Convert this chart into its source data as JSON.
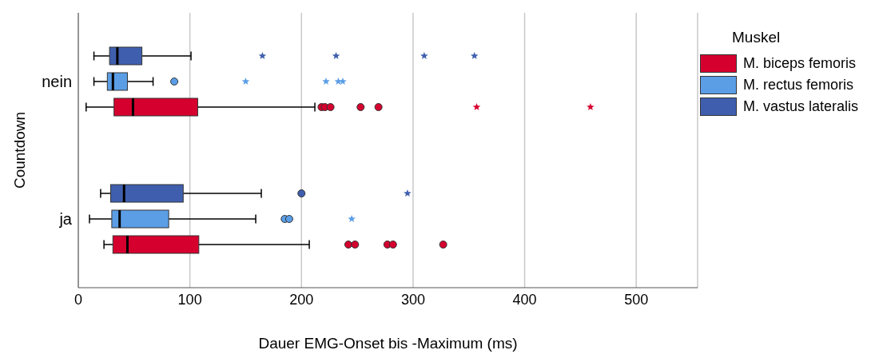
{
  "chart_data": {
    "type": "box",
    "orientation": "horizontal",
    "xlabel": "Dauer EMG-Onset bis -Maximum (ms)",
    "ylabel": "Countdown",
    "legend_title": "Muskel",
    "legend": "right",
    "grid": "x",
    "categories": [
      "nein",
      "ja"
    ],
    "xlim": [
      0,
      555
    ],
    "xticks": [
      0,
      100,
      200,
      300,
      400,
      500
    ],
    "series": [
      {
        "name": "M. biceps femoris",
        "color": "#d6002f",
        "boxes": [
          {
            "low": 7,
            "q1": 32,
            "median": 49,
            "q3": 107,
            "high": 212,
            "outliers": [
              218,
              221,
              226,
              253,
              269,
              357,
              459
            ]
          },
          {
            "low": 23,
            "q1": 31,
            "median": 44,
            "q3": 108,
            "high": 207,
            "outliers": [
              242,
              248,
              277,
              282,
              327
            ]
          }
        ]
      },
      {
        "name": "M. rectus femoris",
        "color": "#5b9ee6",
        "boxes": [
          {
            "low": 14,
            "q1": 26,
            "median": 31,
            "q3": 44,
            "high": 67,
            "outliers": [
              86,
              150,
              222,
              233,
              237
            ]
          },
          {
            "low": 10,
            "q1": 30,
            "median": 37,
            "q3": 81,
            "high": 159,
            "outliers": [
              185,
              189,
              245
            ]
          }
        ]
      },
      {
        "name": "M. vastus lateralis",
        "color": "#3f5fae",
        "boxes": [
          {
            "low": 14,
            "q1": 28,
            "median": 35,
            "q3": 57,
            "high": 101,
            "outliers": [
              165,
              231,
              310,
              355
            ]
          },
          {
            "low": 20,
            "q1": 29,
            "median": 41,
            "q3": 94,
            "high": 164,
            "outliers": [
              200,
              295
            ]
          }
        ]
      }
    ]
  }
}
